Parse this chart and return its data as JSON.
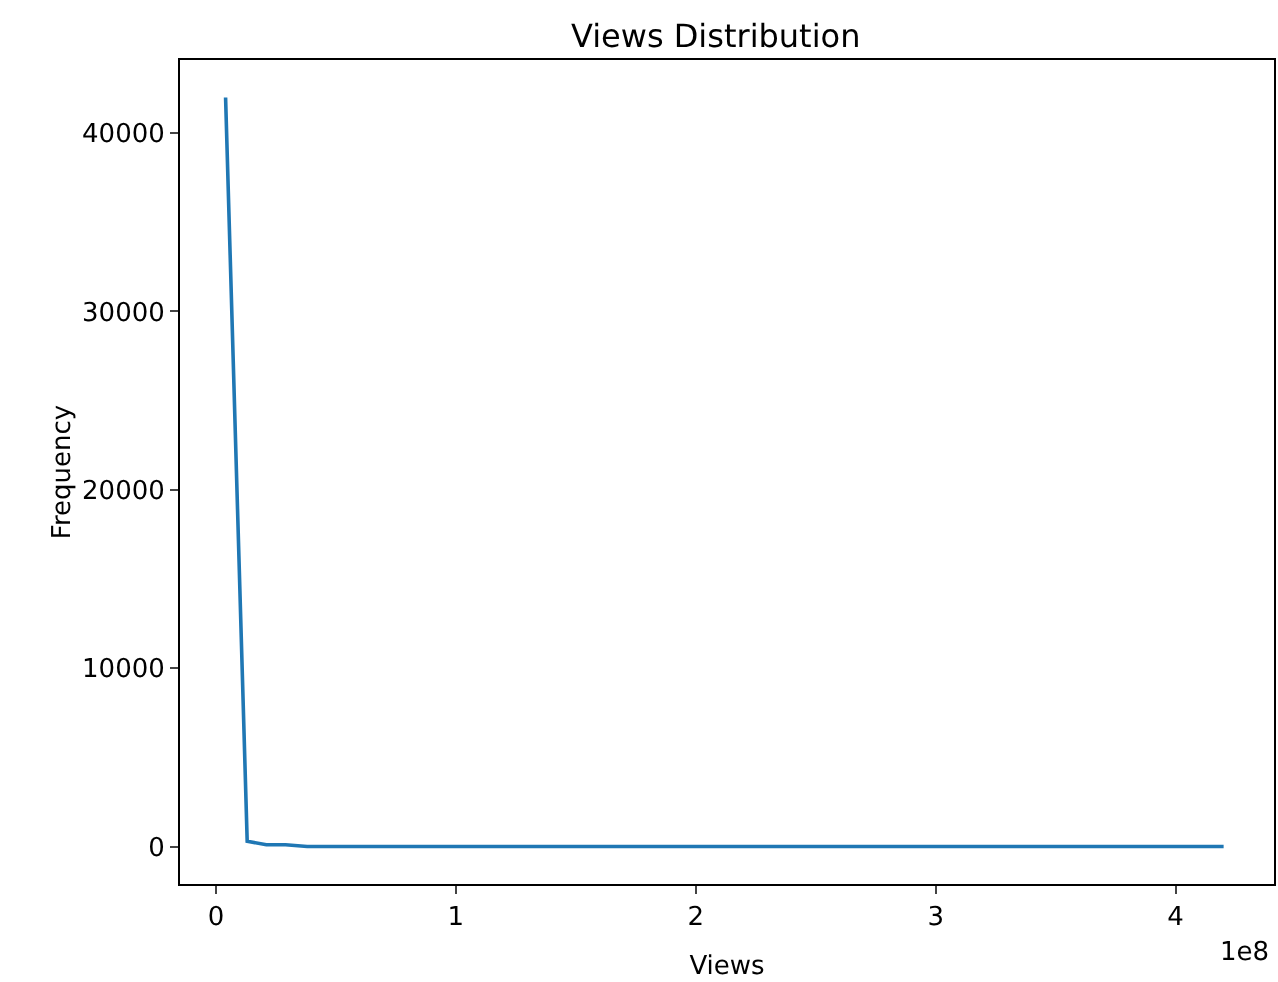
{
  "chart_data": {
    "type": "line",
    "title": "Views Distribution",
    "xlabel": "Views",
    "ylabel": "Frequency",
    "x": [
      0.04,
      0.13,
      0.21,
      0.29,
      0.38,
      0.5,
      1,
      2,
      3,
      4.2
    ],
    "series": [
      {
        "color": "#1f77b4",
        "values": [
          42000,
          300,
          100,
          100,
          0,
          0,
          0,
          0,
          0,
          0
        ]
      }
    ],
    "xlim": [
      -0.15,
      4.41
    ],
    "xticks": [
      0,
      1,
      2,
      3,
      4
    ],
    "ylim": [
      -2100,
      44100
    ],
    "yticks": [
      0,
      10000,
      20000,
      30000,
      40000
    ],
    "annotations": [
      "1e8"
    ],
    "grid": false,
    "legend": false,
    "marker": "none",
    "line_style": "solid"
  }
}
